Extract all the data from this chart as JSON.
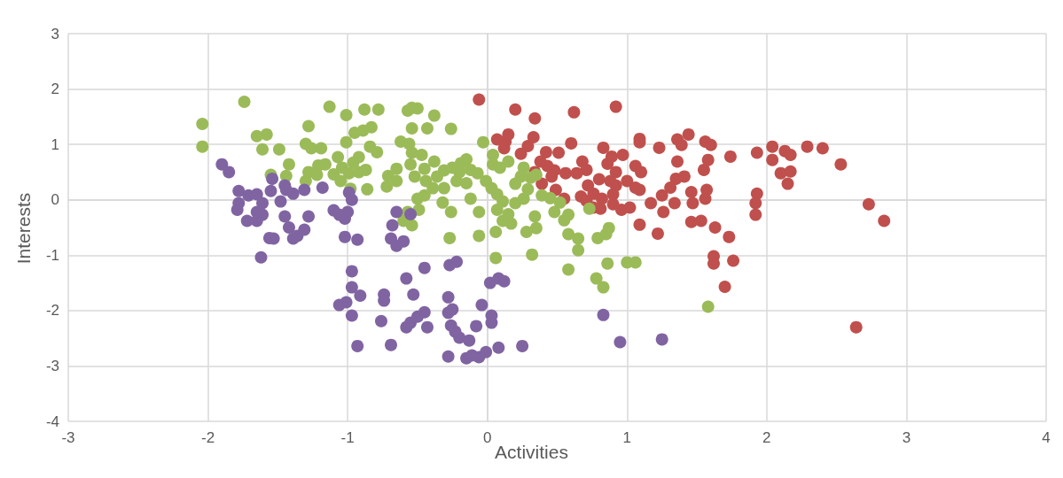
{
  "chart_data": {
    "type": "scatter",
    "xlabel": "Activities",
    "ylabel": "Interests",
    "xlim": [
      -3,
      4
    ],
    "xticks": [
      -3,
      -2,
      -1,
      0,
      1,
      2,
      3,
      4
    ],
    "ylim": [
      -4,
      3
    ],
    "yticks": [
      -4,
      -3,
      -2,
      -1,
      0,
      1,
      2,
      3
    ],
    "grid": true,
    "marker": "circle",
    "series": [
      {
        "color": "#c0504d",
        "x": [
          -0.06,
          0.2,
          0.34,
          0.62,
          0.92,
          0.13,
          0.15,
          0.29,
          0.33,
          0.38,
          0.24,
          0.51,
          0.6,
          0.83,
          0.89,
          1.09,
          1.09,
          1.23,
          1.36,
          1.44,
          1.39,
          1.56,
          1.6,
          1.74,
          1.93,
          2.04,
          2.04,
          2.13,
          2.17,
          2.29,
          2.4,
          2.53,
          2.1,
          2.17,
          2.15,
          1.93,
          1.92,
          1.92,
          2.73,
          2.84,
          2.64,
          1.36,
          1.58,
          1.55,
          1.35,
          1.41,
          1.31,
          1.25,
          1.46,
          1.57,
          1.56,
          1.47,
          1.46,
          1.53,
          1.34,
          1.26,
          1.22,
          1.09,
          1.17,
          1.63,
          1.73,
          1.62,
          1.62,
          1.76,
          1.7,
          1.06,
          1.1,
          1.06,
          0.97,
          0.92,
          0.88,
          0.8,
          0.72,
          0.71,
          0.64,
          0.56,
          0.46,
          0.48,
          0.43,
          0.34,
          0.39,
          0.49,
          0.55,
          0.67,
          0.76,
          0.82,
          0.9,
          0.96,
          1.02,
          0.81,
          0.76,
          0.9,
          0.71,
          0.92,
          1.0,
          1.09,
          0.42,
          0.07,
          0.12,
          0.68,
          0.86
        ],
        "values": [
          1.81,
          1.63,
          1.47,
          1.58,
          1.68,
          1.05,
          1.18,
          0.97,
          1.13,
          0.69,
          0.83,
          0.85,
          1.02,
          0.94,
          0.78,
          1.1,
          1.04,
          0.94,
          1.09,
          1.18,
          0.99,
          1.05,
          0.99,
          0.78,
          0.85,
          0.96,
          0.72,
          0.88,
          0.81,
          0.96,
          0.93,
          0.64,
          0.48,
          0.51,
          0.29,
          0.11,
          -0.06,
          -0.27,
          -0.08,
          -0.38,
          -2.3,
          0.69,
          0.72,
          0.54,
          0.38,
          0.42,
          0.22,
          0.08,
          0.14,
          0.18,
          0.02,
          -0.06,
          -0.4,
          -0.38,
          -0.06,
          -0.22,
          -0.61,
          -0.45,
          -0.06,
          -0.5,
          -0.67,
          -1.02,
          -1.15,
          -1.1,
          -1.57,
          0.22,
          0.5,
          0.61,
          0.81,
          0.5,
          0.34,
          0.37,
          0.26,
          0.54,
          0.48,
          0.48,
          0.42,
          0.53,
          0.61,
          0.5,
          0.29,
          0.18,
          0.02,
          0.06,
          0.11,
          0.02,
          -0.08,
          -0.18,
          -0.14,
          -0.16,
          -0.14,
          0.1,
          -0.02,
          0.26,
          0.34,
          0.18,
          0.86,
          1.09,
          0.93,
          0.69,
          0.65
        ]
      },
      {
        "color": "#9bbb59",
        "x": [
          -2.04,
          -2.04,
          -1.74,
          -1.65,
          -1.58,
          -1.61,
          -1.49,
          -1.42,
          -1.55,
          -1.44,
          -1.28,
          -1.3,
          -1.26,
          -1.19,
          -1.21,
          -1.16,
          -1.28,
          -1.3,
          -1.13,
          -1.01,
          -0.88,
          -0.78,
          -0.79,
          -0.84,
          -0.92,
          -0.96,
          -1.01,
          -0.95,
          -0.89,
          -0.83,
          -1.07,
          -1.04,
          -0.99,
          -0.92,
          -0.86,
          -1.05,
          -1.1,
          -1.22,
          -0.98,
          -0.87,
          -0.57,
          -0.54,
          -0.5,
          -0.38,
          -0.54,
          -0.43,
          -0.26,
          -0.62,
          -0.56,
          -0.54,
          -0.47,
          -0.38,
          -0.45,
          -0.55,
          -0.65,
          -0.71,
          -0.65,
          -0.72,
          -0.52,
          -0.44,
          -0.36,
          -0.31,
          -0.25,
          -0.19,
          -0.15,
          -0.2,
          -0.12,
          -0.07,
          -0.15,
          -0.22,
          -0.31,
          -0.39,
          -0.45,
          -0.5,
          -0.49,
          -0.57,
          -0.54,
          -0.6,
          -0.32,
          -0.26,
          -0.27,
          -0.06,
          -0.06,
          -0.12,
          -0.03,
          0.04,
          0.04,
          0.09,
          0.15,
          -0.01,
          0.03,
          0.07,
          0.11,
          0.07,
          0.15,
          0.11,
          0.2,
          0.26,
          0.29,
          0.31,
          0.35,
          0.26,
          0.24,
          0.2,
          0.39,
          0.45,
          0.52,
          0.48,
          0.58,
          0.55,
          0.34,
          0.35,
          0.28,
          0.17,
          0.58,
          0.65,
          0.65,
          0.32,
          0.06,
          0.06,
          0.58,
          0.79,
          0.85,
          0.78,
          0.83,
          0.86,
          1.0,
          1.06,
          1.58,
          0.87,
          0.73
        ],
        "values": [
          1.37,
          0.96,
          1.77,
          1.15,
          1.18,
          0.91,
          0.91,
          0.64,
          0.45,
          0.43,
          1.33,
          1.01,
          0.93,
          0.93,
          0.62,
          0.64,
          0.5,
          0.34,
          1.68,
          1.53,
          1.63,
          1.63,
          0.86,
          0.96,
          0.77,
          0.67,
          1.04,
          1.21,
          1.25,
          1.31,
          0.77,
          0.58,
          0.48,
          0.5,
          0.19,
          0.34,
          0.46,
          0.45,
          0.2,
          0.54,
          1.61,
          1.66,
          1.65,
          1.52,
          1.29,
          1.29,
          1.28,
          1.05,
          1.01,
          0.85,
          0.81,
          0.69,
          0.56,
          0.64,
          0.56,
          0.43,
          0.34,
          0.24,
          0.42,
          0.34,
          0.42,
          0.53,
          0.58,
          0.66,
          0.73,
          0.5,
          0.54,
          0.48,
          0.3,
          0.34,
          0.21,
          0.21,
          0.08,
          0.02,
          -0.18,
          -0.22,
          -0.46,
          -0.38,
          -0.05,
          -0.22,
          -0.69,
          -0.65,
          -0.22,
          0.02,
          1.04,
          0.81,
          0.64,
          0.58,
          0.69,
          0.34,
          0.21,
          0.1,
          -0.03,
          -0.18,
          -0.26,
          -0.38,
          -0.06,
          0.02,
          0.19,
          0.4,
          0.45,
          0.58,
          0.42,
          0.29,
          0.08,
          0.03,
          -0.05,
          -0.22,
          -0.27,
          -0.37,
          -0.3,
          -0.51,
          -0.58,
          -0.43,
          -0.62,
          -0.7,
          -0.91,
          -0.99,
          -1.05,
          -0.58,
          -1.26,
          -0.69,
          -0.62,
          -1.42,
          -1.58,
          -1.15,
          -1.13,
          -1.13,
          -1.93,
          -0.51,
          -0.16
        ]
      },
      {
        "color": "#8064a2",
        "x": [
          -1.9,
          -1.85,
          -1.78,
          -1.78,
          -1.79,
          -1.72,
          -1.71,
          -1.65,
          -1.65,
          -1.61,
          -1.61,
          -1.65,
          -1.54,
          -1.55,
          -1.45,
          -1.44,
          -1.48,
          -1.39,
          -1.31,
          -1.18,
          -1.62,
          -1.56,
          -1.53,
          -1.45,
          -1.42,
          -1.39,
          -1.36,
          -1.31,
          -1.28,
          -1.1,
          -1.06,
          -1.02,
          -1.0,
          -0.97,
          -0.99,
          -1.02,
          -0.97,
          -0.97,
          -1.06,
          -1.01,
          -0.91,
          -0.97,
          -0.93,
          -0.65,
          -0.68,
          -0.69,
          -0.65,
          -0.6,
          -0.55,
          -0.74,
          -0.74,
          -0.76,
          -0.69,
          -0.58,
          -0.53,
          -0.58,
          -0.55,
          -0.5,
          -0.45,
          -0.43,
          -0.45,
          -0.27,
          -0.22,
          -0.28,
          -0.28,
          -0.26,
          -0.23,
          -0.2,
          -0.13,
          -0.08,
          -0.25,
          -0.04,
          0.03,
          0.03,
          0.02,
          0.08,
          0.12,
          -0.11,
          -0.01,
          -0.06,
          -0.28,
          -0.15,
          0.08,
          0.25,
          0.83,
          0.95,
          1.25,
          -0.93
        ],
        "values": [
          0.64,
          0.5,
          0.16,
          -0.06,
          -0.18,
          -0.38,
          0.08,
          0.1,
          -0.22,
          -0.06,
          -0.27,
          -0.38,
          0.38,
          0.16,
          0.26,
          0.18,
          -0.03,
          0.11,
          0.18,
          0.22,
          -1.04,
          -0.69,
          -0.7,
          -0.3,
          -0.5,
          -0.7,
          -0.65,
          -0.54,
          -0.3,
          -0.19,
          -0.27,
          -0.34,
          -0.22,
          0.0,
          0.13,
          -0.67,
          -1.29,
          -1.58,
          -1.9,
          -1.85,
          -1.73,
          -2.09,
          -2.64,
          -0.22,
          -0.46,
          -0.7,
          -0.83,
          -0.75,
          -0.26,
          -1.71,
          -1.82,
          -2.19,
          -2.62,
          -1.42,
          -1.71,
          -2.3,
          -2.22,
          -2.11,
          -2.03,
          -2.3,
          -1.23,
          -1.18,
          -1.12,
          -1.76,
          -2.04,
          -2.27,
          -2.38,
          -2.49,
          -2.54,
          -2.28,
          -1.98,
          -1.9,
          -2.09,
          -2.22,
          -1.5,
          -1.42,
          -1.47,
          -2.81,
          -2.75,
          -2.84,
          -2.83,
          -2.86,
          -2.67,
          -2.64,
          -2.08,
          -2.57,
          -2.52,
          -0.72
        ]
      }
    ]
  }
}
